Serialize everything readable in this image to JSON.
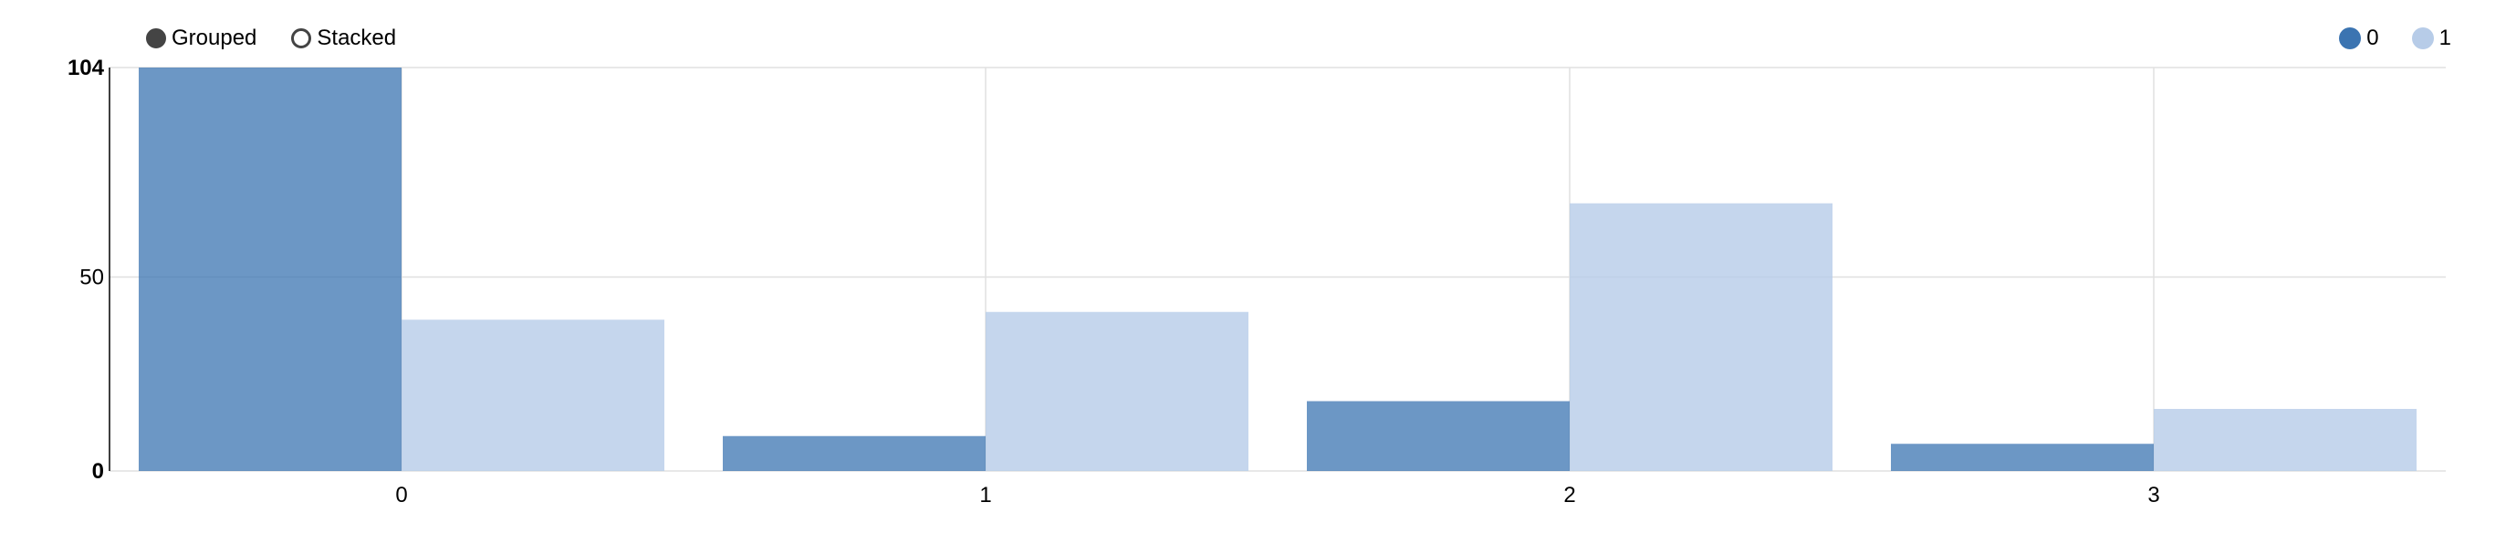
{
  "controls": {
    "grouped_label": "Grouped",
    "stacked_label": "Stacked",
    "selected": "Grouped"
  },
  "legend": [
    {
      "label": "0",
      "color": "#3b74b1"
    },
    {
      "label": "1",
      "color": "#b7cce8"
    }
  ],
  "chart_data": {
    "type": "bar",
    "mode": "grouped",
    "categories": [
      "0",
      "1",
      "2",
      "3"
    ],
    "series": [
      {
        "name": "0",
        "values": [
          104,
          9,
          18,
          7
        ],
        "color": "#3b74b1"
      },
      {
        "name": "1",
        "values": [
          39,
          41,
          69,
          16
        ],
        "color": "#b7cce8"
      }
    ],
    "ylim": [
      0,
      104
    ],
    "yticks": [
      "0",
      "50",
      "104"
    ],
    "grid": true,
    "legend_position": "top-right",
    "title": "",
    "xlabel": "",
    "ylabel": ""
  }
}
